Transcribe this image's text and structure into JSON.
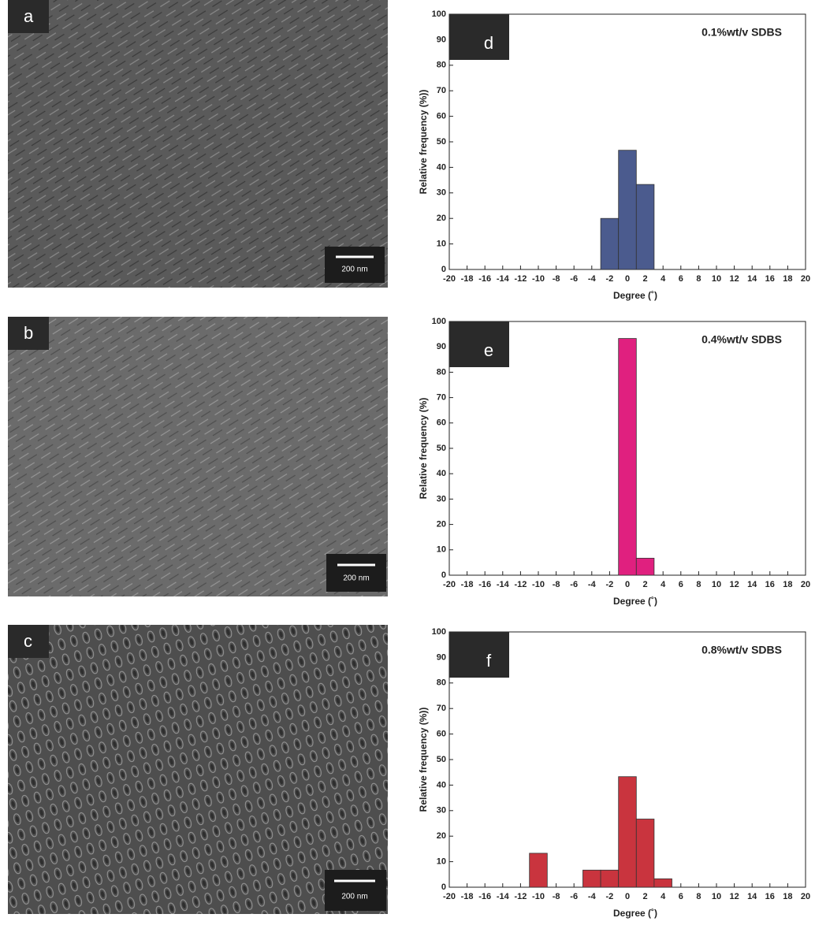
{
  "images": [
    {
      "label": "a",
      "scale_bar": "200 nm"
    },
    {
      "label": "b",
      "scale_bar": "200 nm"
    },
    {
      "label": "c",
      "scale_bar": "200 nm"
    }
  ],
  "chart_data": [
    {
      "type": "histogram",
      "panel_label": "d",
      "title": "0.1%wt/v SDBS",
      "x_label": "Degree (˚)",
      "y_label": "Relative frequency (%))",
      "bins": [
        -3,
        -1,
        1,
        3
      ],
      "counts": [
        20,
        46.7,
        33.3
      ],
      "color": "#4b5b8e",
      "xlim": [
        -20,
        20
      ],
      "xticks": [
        -20,
        -18,
        -16,
        -14,
        -12,
        -10,
        -8,
        -6,
        -4,
        -2,
        0,
        2,
        4,
        6,
        8,
        10,
        12,
        14,
        16,
        18,
        20
      ],
      "ylim": [
        0,
        100
      ],
      "yticks": [
        0,
        10,
        20,
        30,
        40,
        50,
        60,
        70,
        80,
        90,
        100
      ]
    },
    {
      "type": "histogram",
      "panel_label": "e",
      "title": "0.4%wt/v SDBS",
      "x_label": "Degree (˚)",
      "y_label": "Relative frequency (%)",
      "bins": [
        -1,
        1,
        3
      ],
      "counts": [
        93.3,
        6.7
      ],
      "color": "#e0207f",
      "xlim": [
        -20,
        20
      ],
      "xticks": [
        -20,
        -18,
        -16,
        -14,
        -12,
        -10,
        -8,
        -6,
        -4,
        -2,
        0,
        2,
        4,
        6,
        8,
        10,
        12,
        14,
        16,
        18,
        20
      ],
      "ylim": [
        0,
        100
      ],
      "yticks": [
        0,
        10,
        20,
        30,
        40,
        50,
        60,
        70,
        80,
        90,
        100
      ]
    },
    {
      "type": "histogram",
      "panel_label": "f",
      "title": "0.8%wt/v SDBS",
      "x_label": "Degree (˚)",
      "y_label": "Relative frequency (%))",
      "bins": [
        -11,
        -9,
        -7,
        -5,
        -3,
        -1,
        1,
        3,
        5
      ],
      "counts": [
        13.3,
        0,
        0,
        6.7,
        6.7,
        43.3,
        26.7,
        3.3
      ],
      "color": "#c9343e",
      "xlim": [
        -20,
        20
      ],
      "xticks": [
        -20,
        -18,
        -16,
        -14,
        -12,
        -10,
        -8,
        -6,
        -4,
        -2,
        0,
        2,
        4,
        6,
        8,
        10,
        12,
        14,
        16,
        18,
        20
      ],
      "ylim": [
        0,
        100
      ],
      "yticks": [
        0,
        10,
        20,
        30,
        40,
        50,
        60,
        70,
        80,
        90,
        100
      ]
    }
  ]
}
